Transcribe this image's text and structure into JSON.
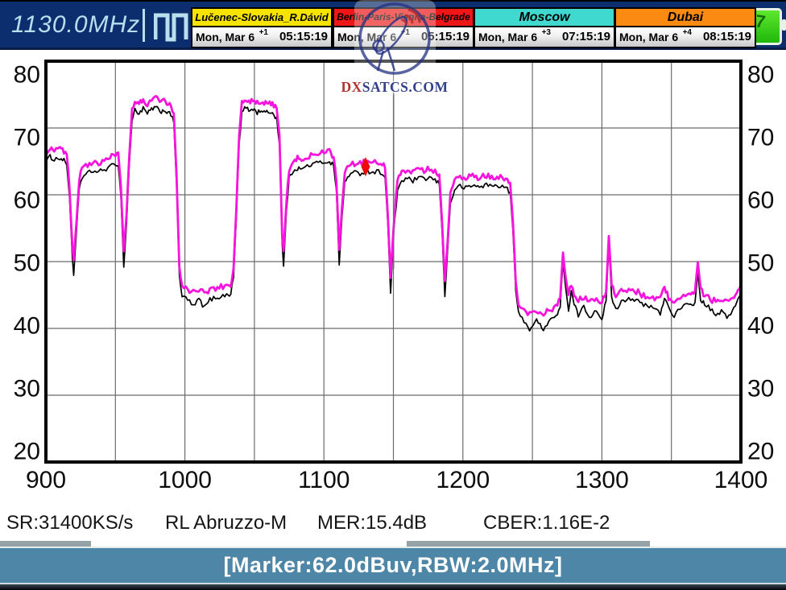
{
  "header": {
    "frequency": "1130.0MHz",
    "clocks": [
      {
        "name": "Lučenec-Slovakia_R.Dávid",
        "color": "#f6e400",
        "date": "Mon, Mar 6",
        "offset": "+1",
        "time": "05:15:19"
      },
      {
        "name": "Berlin-Paris-Vienna-Belgrade",
        "color": "#ee1616",
        "date": "Mon, Mar 6",
        "offset": "+1",
        "time": "05:15:19"
      },
      {
        "name": "Moscow",
        "color": "#3fd9cf",
        "date": "Mon, Mar 6",
        "offset": "+3",
        "time": "07:15:19"
      },
      {
        "name": "Dubai",
        "color": "#fb8a13",
        "date": "Mon, Mar 6",
        "offset": "+4",
        "time": "08:15:19"
      }
    ],
    "battery_label": "7"
  },
  "watermark": {
    "text_dx": "DX",
    "text_rest": "SATCS.COM"
  },
  "chart_data": {
    "type": "line",
    "title": "",
    "xlabel": "",
    "ylabel": "",
    "xlim": [
      900,
      1400
    ],
    "ylim": [
      20,
      80
    ],
    "x_ticks": [
      900,
      1000,
      1100,
      1200,
      1300,
      1400
    ],
    "y_ticks": [
      80,
      70,
      60,
      50,
      40,
      30,
      20
    ],
    "x_grid_step_mhz": 50,
    "grid": true,
    "legend": "none",
    "marker": {
      "frequency_mhz": 1130.0,
      "displayed_level_dbuv": 62.0,
      "color": "#ee0808"
    },
    "series": [
      {
        "name": "peak-hold-trace",
        "color": "#f714dd",
        "width": 2.8,
        "noise_db": 0.45,
        "points": [
          [
            900,
            66.4
          ],
          [
            903,
            67.1
          ],
          [
            906,
            66.7
          ],
          [
            910,
            66.9
          ],
          [
            913,
            66.5
          ],
          [
            915,
            66.0
          ],
          [
            917,
            61
          ],
          [
            919,
            52
          ],
          [
            920,
            50.2
          ],
          [
            922,
            56
          ],
          [
            924,
            62.5
          ],
          [
            926,
            64.0
          ],
          [
            930,
            64.6
          ],
          [
            934,
            65.0
          ],
          [
            938,
            64.8
          ],
          [
            942,
            65.2
          ],
          [
            946,
            65.5
          ],
          [
            950,
            66.1
          ],
          [
            952,
            65.9
          ],
          [
            954,
            61
          ],
          [
            956,
            51.5
          ],
          [
            958,
            57
          ],
          [
            960,
            66
          ],
          [
            962,
            72.6
          ],
          [
            964,
            74.1
          ],
          [
            967,
            73.6
          ],
          [
            970,
            74.3
          ],
          [
            973,
            73.5
          ],
          [
            976,
            74.2
          ],
          [
            979,
            74.5
          ],
          [
            982,
            73.8
          ],
          [
            985,
            74.1
          ],
          [
            988,
            73.7
          ],
          [
            990,
            73.3
          ],
          [
            992,
            72.2
          ],
          [
            994,
            63
          ],
          [
            996,
            49
          ],
          [
            998,
            46.2
          ],
          [
            1002,
            45.8
          ],
          [
            1006,
            45.5
          ],
          [
            1010,
            45.8
          ],
          [
            1014,
            45.4
          ],
          [
            1018,
            45.7
          ],
          [
            1022,
            46.0
          ],
          [
            1026,
            46.2
          ],
          [
            1030,
            46.4
          ],
          [
            1033,
            46.6
          ],
          [
            1035,
            49
          ],
          [
            1037,
            58
          ],
          [
            1039,
            69
          ],
          [
            1041,
            73.6
          ],
          [
            1043,
            74.5
          ],
          [
            1046,
            74.0
          ],
          [
            1049,
            74.3
          ],
          [
            1052,
            73.7
          ],
          [
            1055,
            74.1
          ],
          [
            1058,
            73.6
          ],
          [
            1061,
            73.9
          ],
          [
            1064,
            73.4
          ],
          [
            1066,
            72.9
          ],
          [
            1068,
            69
          ],
          [
            1070,
            54
          ],
          [
            1071,
            51.6
          ],
          [
            1073,
            59
          ],
          [
            1075,
            63.8
          ],
          [
            1078,
            65.1
          ],
          [
            1081,
            65.4
          ],
          [
            1084,
            65.2
          ],
          [
            1088,
            65.7
          ],
          [
            1092,
            66.0
          ],
          [
            1096,
            66.2
          ],
          [
            1100,
            66.3
          ],
          [
            1104,
            66.4
          ],
          [
            1107,
            65.8
          ],
          [
            1109,
            62
          ],
          [
            1111,
            51.8
          ],
          [
            1113,
            58
          ],
          [
            1115,
            63.3
          ],
          [
            1118,
            64.4
          ],
          [
            1122,
            64.7
          ],
          [
            1126,
            64.6
          ],
          [
            1130,
            65.0
          ],
          [
            1134,
            64.8
          ],
          [
            1138,
            64.9
          ],
          [
            1142,
            64.7
          ],
          [
            1144,
            64.0
          ],
          [
            1146,
            57
          ],
          [
            1148,
            47.6
          ],
          [
            1150,
            55
          ],
          [
            1153,
            62.2
          ],
          [
            1156,
            63.5
          ],
          [
            1160,
            63.8
          ],
          [
            1164,
            63.5
          ],
          [
            1168,
            63.9
          ],
          [
            1172,
            63.7
          ],
          [
            1176,
            64.0
          ],
          [
            1180,
            63.5
          ],
          [
            1183,
            63.0
          ],
          [
            1185,
            56
          ],
          [
            1187,
            47.1
          ],
          [
            1189,
            53
          ],
          [
            1191,
            60
          ],
          [
            1194,
            62.2
          ],
          [
            1198,
            62.7
          ],
          [
            1202,
            62.4
          ],
          [
            1207,
            62.8
          ],
          [
            1212,
            62.6
          ],
          [
            1217,
            62.9
          ],
          [
            1222,
            62.7
          ],
          [
            1227,
            62.8
          ],
          [
            1231,
            62.4
          ],
          [
            1234,
            61.8
          ],
          [
            1236,
            56
          ],
          [
            1238,
            47
          ],
          [
            1240,
            43.6
          ],
          [
            1244,
            42.6
          ],
          [
            1248,
            42.2
          ],
          [
            1253,
            42.5
          ],
          [
            1258,
            42.3
          ],
          [
            1263,
            42.8
          ],
          [
            1267,
            43.2
          ],
          [
            1270,
            44.5
          ],
          [
            1272,
            51.6
          ],
          [
            1274,
            47.5
          ],
          [
            1276,
            44.8
          ],
          [
            1278,
            46.8
          ],
          [
            1280,
            45.0
          ],
          [
            1283,
            44.3
          ],
          [
            1287,
            44.6
          ],
          [
            1291,
            44.0
          ],
          [
            1296,
            44.2
          ],
          [
            1300,
            43.8
          ],
          [
            1303,
            45.5
          ],
          [
            1305,
            53.8
          ],
          [
            1307,
            46.3
          ],
          [
            1310,
            45.0
          ],
          [
            1314,
            45.6
          ],
          [
            1318,
            45.8
          ],
          [
            1322,
            45.9
          ],
          [
            1326,
            45.4
          ],
          [
            1330,
            44.9
          ],
          [
            1334,
            44.6
          ],
          [
            1338,
            44.5
          ],
          [
            1342,
            44.4
          ],
          [
            1345,
            46.0
          ],
          [
            1348,
            44.6
          ],
          [
            1352,
            44.2
          ],
          [
            1356,
            44.3
          ],
          [
            1360,
            44.8
          ],
          [
            1364,
            44.9
          ],
          [
            1367,
            45.3
          ],
          [
            1369,
            49.6
          ],
          [
            1371,
            45.8
          ],
          [
            1374,
            44.9
          ],
          [
            1378,
            44.4
          ],
          [
            1382,
            44.0
          ],
          [
            1386,
            44.1
          ],
          [
            1390,
            43.8
          ],
          [
            1394,
            44.2
          ],
          [
            1397,
            45.2
          ],
          [
            1400,
            46.6
          ]
        ]
      },
      {
        "name": "live-trace",
        "color": "#000000",
        "width": 1.7,
        "noise_db": 0.35,
        "offset_from_peak_db": 1.4,
        "extra_dip_db": 0.9
      }
    ]
  },
  "status": {
    "sr": "SR:31400KS/s",
    "channel": "RL Abruzzo-M",
    "mer": "MER:15.4dB",
    "cber": "CBER:1.16E-2"
  },
  "footer": {
    "marker_text": "[Marker:62.0dBuv,RBW:2.0MHz]"
  }
}
